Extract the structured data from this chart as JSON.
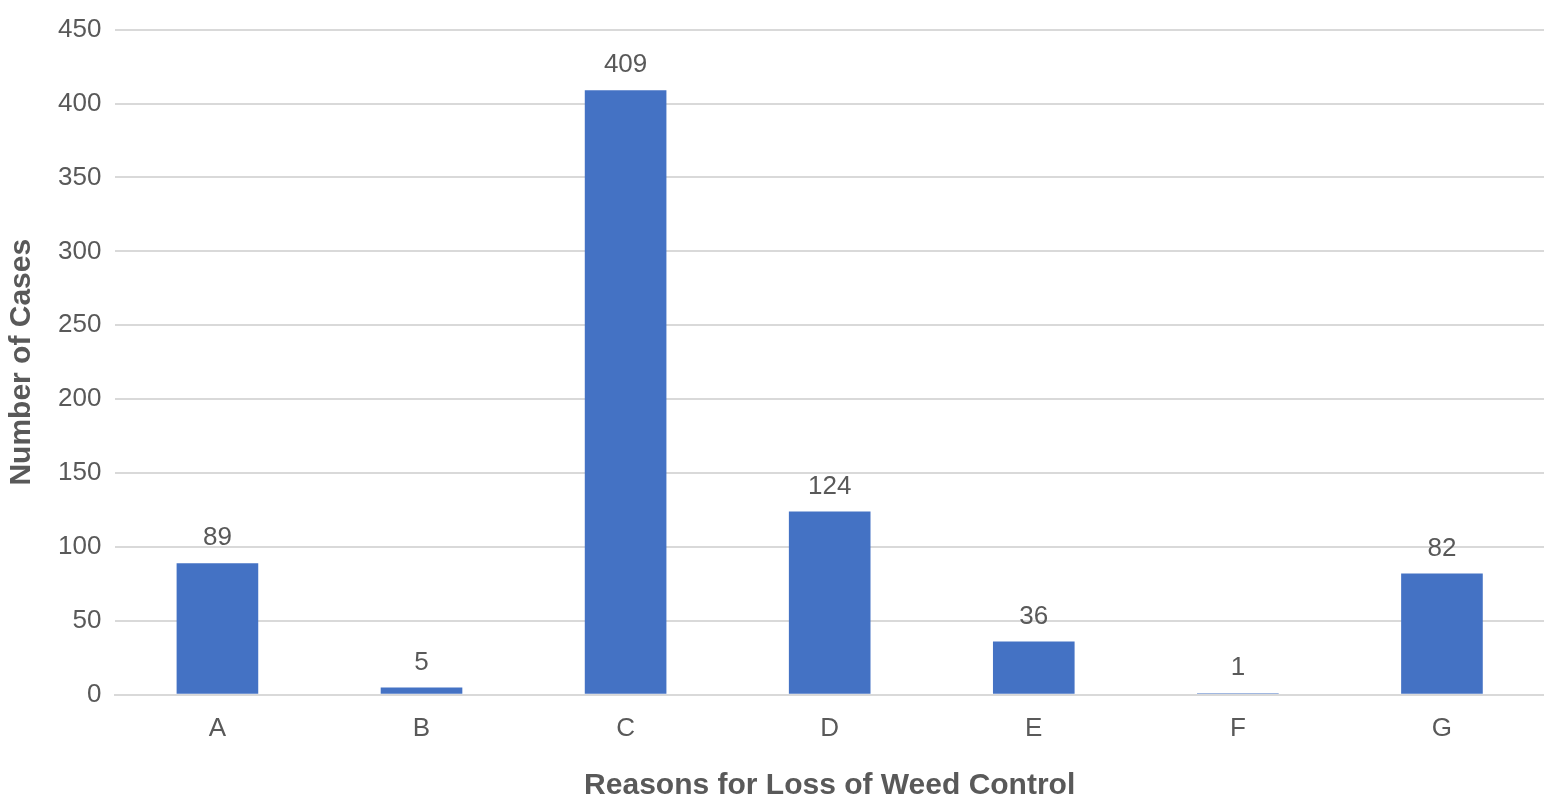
{
  "chart_data": {
    "type": "bar",
    "xlabel": "Reasons for Loss of Weed Control",
    "ylabel": "Number of Cases",
    "categories": [
      "A",
      "B",
      "C",
      "D",
      "E",
      "F",
      "G"
    ],
    "values": [
      89,
      5,
      409,
      124,
      36,
      1,
      82
    ],
    "color": "#4472c4",
    "ylim": [
      0,
      450
    ],
    "yticks": [
      0,
      50,
      100,
      150,
      200,
      250,
      300,
      350,
      400,
      450
    ],
    "grid": "y",
    "data_labels": true
  }
}
